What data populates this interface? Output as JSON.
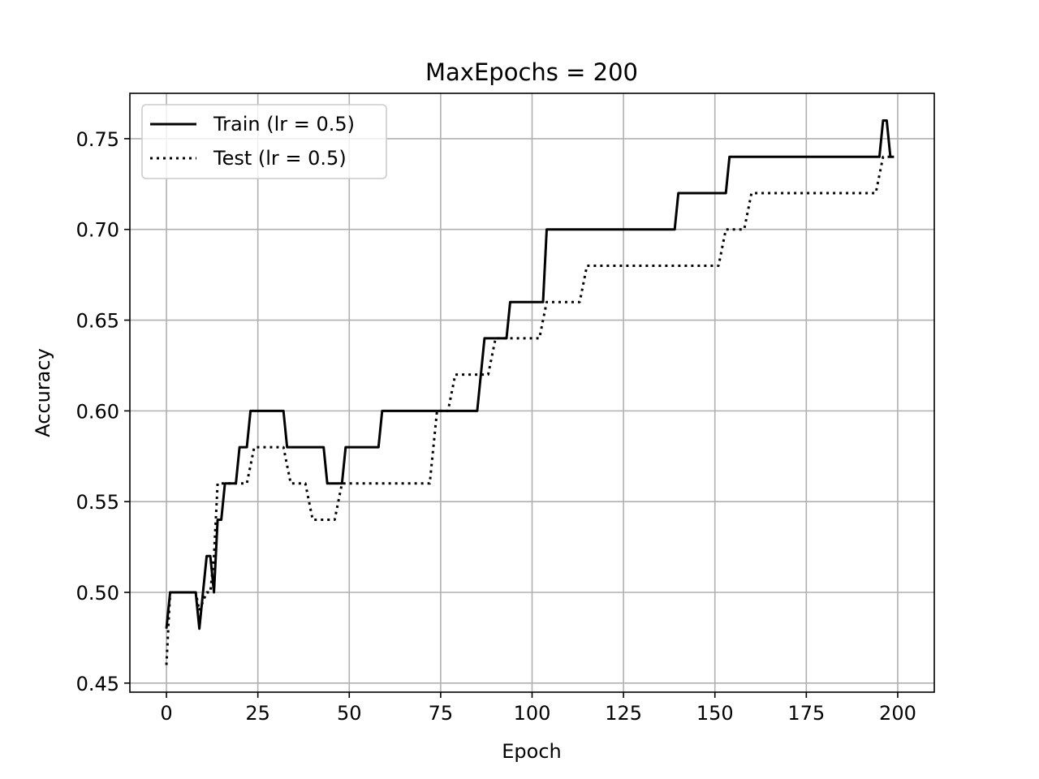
{
  "chart_data": {
    "type": "line",
    "title": "MaxEpochs = 200",
    "xlabel": "Epoch",
    "ylabel": "Accuracy",
    "xlim": [
      -10,
      210
    ],
    "ylim": [
      0.445,
      0.775
    ],
    "xticks": [
      0,
      25,
      50,
      75,
      100,
      125,
      150,
      175,
      200
    ],
    "xtick_labels": [
      "0",
      "25",
      "50",
      "75",
      "100",
      "125",
      "150",
      "175",
      "200"
    ],
    "yticks": [
      0.45,
      0.5,
      0.55,
      0.6,
      0.65,
      0.7,
      0.75
    ],
    "ytick_labels": [
      "0.45",
      "0.50",
      "0.55",
      "0.60",
      "0.65",
      "0.70",
      "0.75"
    ],
    "grid": true,
    "legend_position": "upper-left",
    "series": [
      {
        "name": "Train (lr = 0.5)",
        "style": "solid",
        "color": "#000000",
        "x": [
          0,
          1,
          8,
          9,
          11,
          12,
          13,
          14,
          15,
          16,
          19,
          20,
          22,
          23,
          32,
          33,
          43,
          44,
          48,
          49,
          58,
          59,
          85,
          87,
          93,
          94,
          103,
          104,
          139,
          140,
          153,
          154,
          195,
          196,
          197,
          198,
          199
        ],
        "y": [
          0.48,
          0.5,
          0.5,
          0.48,
          0.52,
          0.52,
          0.5,
          0.54,
          0.54,
          0.56,
          0.56,
          0.58,
          0.58,
          0.6,
          0.6,
          0.58,
          0.58,
          0.56,
          0.56,
          0.58,
          0.58,
          0.6,
          0.6,
          0.64,
          0.64,
          0.66,
          0.66,
          0.7,
          0.7,
          0.72,
          0.72,
          0.74,
          0.74,
          0.76,
          0.76,
          0.74,
          0.74
        ]
      },
      {
        "name": "Test (lr = 0.5)",
        "style": "dotted",
        "color": "#000000",
        "x": [
          0,
          1,
          8,
          9,
          11,
          12,
          13,
          14,
          22,
          24,
          32,
          34,
          38,
          40,
          46,
          48,
          72,
          74,
          77,
          79,
          88,
          90,
          102,
          104,
          113,
          115,
          151,
          153,
          158,
          160,
          194,
          196,
          199
        ],
        "y": [
          0.46,
          0.5,
          0.5,
          0.49,
          0.5,
          0.5,
          0.52,
          0.56,
          0.56,
          0.58,
          0.58,
          0.56,
          0.56,
          0.54,
          0.54,
          0.56,
          0.56,
          0.6,
          0.6,
          0.62,
          0.62,
          0.64,
          0.64,
          0.66,
          0.66,
          0.68,
          0.68,
          0.7,
          0.7,
          0.72,
          0.72,
          0.74,
          0.74
        ]
      }
    ]
  }
}
